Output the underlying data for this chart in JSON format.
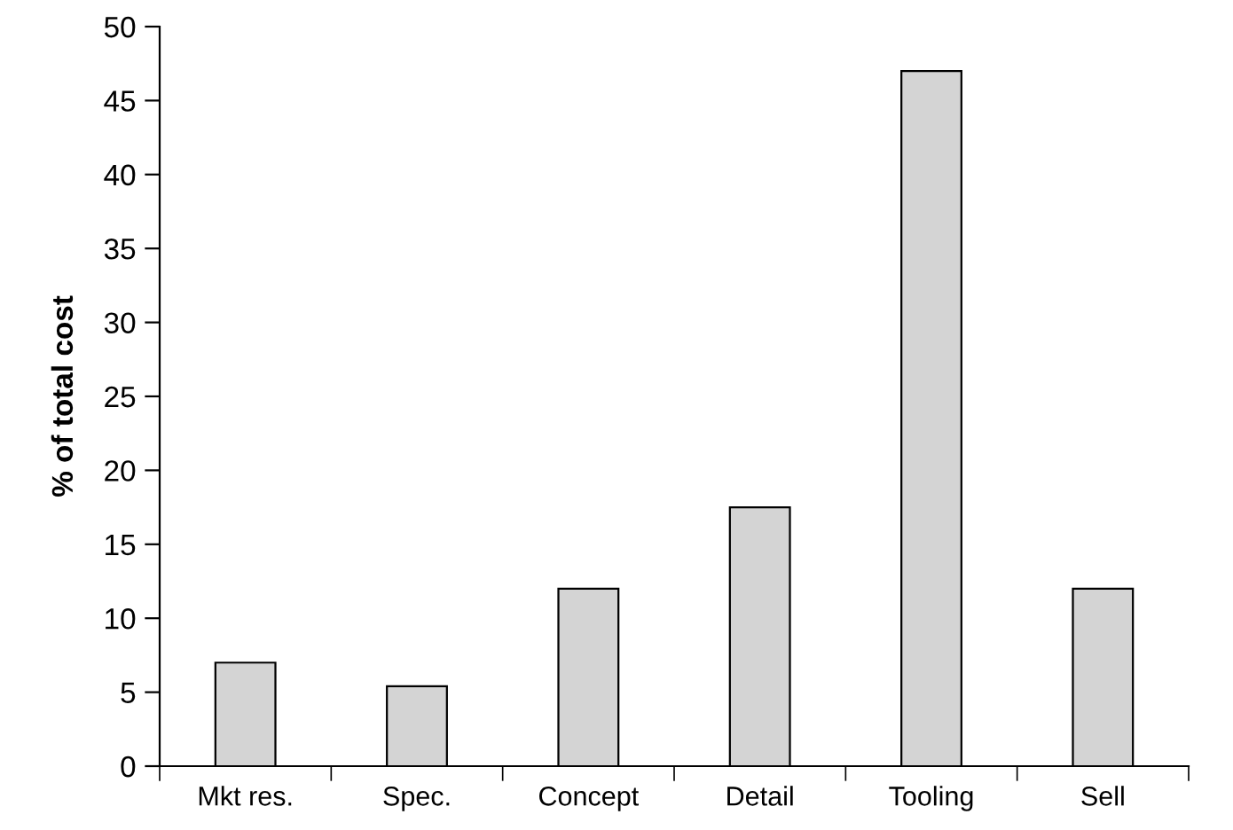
{
  "chart_data": {
    "type": "bar",
    "ylabel": "% of total cost",
    "categories": [
      "Mkt res.",
      "Spec.",
      "Concept",
      "Detail",
      "Tooling",
      "Sell"
    ],
    "values": [
      7,
      5.4,
      12,
      17.5,
      47,
      12
    ],
    "color": "#d4d4d4",
    "ylim": [
      0,
      50
    ],
    "yticks": [
      0,
      5,
      10,
      15,
      20,
      25,
      30,
      35,
      40,
      45,
      50
    ],
    "grid": false,
    "legend": false
  }
}
